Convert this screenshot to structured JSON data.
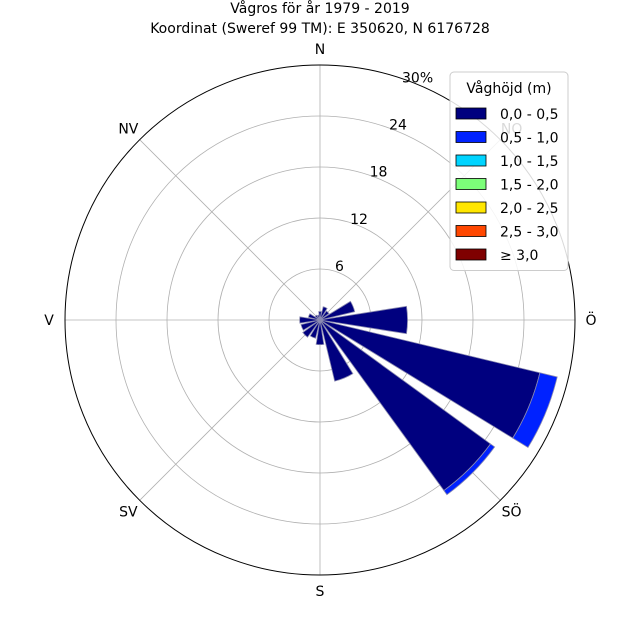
{
  "chart_data": {
    "type": "windrose",
    "title": "Vågros för år 1979 - 2019",
    "subtitle": "Koordinat (Sweref 99 TM): E 350620, N 6176728",
    "directions": [
      "N",
      "NO",
      "Ö",
      "SÖ",
      "S",
      "SV",
      "V",
      "NV"
    ],
    "direction_angles": [
      0,
      45,
      90,
      135,
      180,
      225,
      270,
      315
    ],
    "radial_ticks": [
      "6",
      "12",
      "18",
      "24",
      "30%"
    ],
    "radial_tick_values": [
      6,
      12,
      18,
      24,
      30
    ],
    "rmax": 30,
    "grid": true,
    "legend": {
      "title": "Våghöjd (m)",
      "placement": "top-right",
      "items": [
        {
          "label": "0,0 - 0,5",
          "color": "#00007f"
        },
        {
          "label": "0,5 - 1,0",
          "color": "#0022ff"
        },
        {
          "label": "1,0 - 1,5",
          "color": "#00d4ff"
        },
        {
          "label": "1,5 - 2,0",
          "color": "#7cff79"
        },
        {
          "label": "2,0 - 2,5",
          "color": "#ffe600"
        },
        {
          "label": "2,5 - 3,0",
          "color": "#ff4700"
        },
        {
          "label": "≥ 3,0",
          "color": "#7f0000"
        }
      ]
    },
    "bin_width_deg": 22.5,
    "sectors": [
      {
        "angle": 0,
        "values": [
          1.0
        ]
      },
      {
        "angle": 22.5,
        "values": [
          1.6
        ]
      },
      {
        "angle": 45,
        "values": [
          1.3
        ]
      },
      {
        "angle": 67.5,
        "values": [
          4.2
        ]
      },
      {
        "angle": 90,
        "values": [
          10.3
        ]
      },
      {
        "angle": 112.5,
        "values": [
          26.6,
          2.1
        ]
      },
      {
        "angle": 135,
        "values": [
          24.8,
          0.6
        ]
      },
      {
        "angle": 157.5,
        "values": [
          7.4
        ]
      },
      {
        "angle": 180,
        "values": [
          2.9
        ]
      },
      {
        "angle": 202.5,
        "values": [
          2.2
        ]
      },
      {
        "angle": 225,
        "values": [
          2.5
        ]
      },
      {
        "angle": 247.5,
        "values": [
          2.3
        ]
      },
      {
        "angle": 270,
        "values": [
          2.4
        ]
      },
      {
        "angle": 292.5,
        "values": [
          1.4
        ]
      },
      {
        "angle": 315,
        "values": [
          0.7
        ]
      },
      {
        "angle": 337.5,
        "values": [
          0.6
        ]
      }
    ]
  }
}
